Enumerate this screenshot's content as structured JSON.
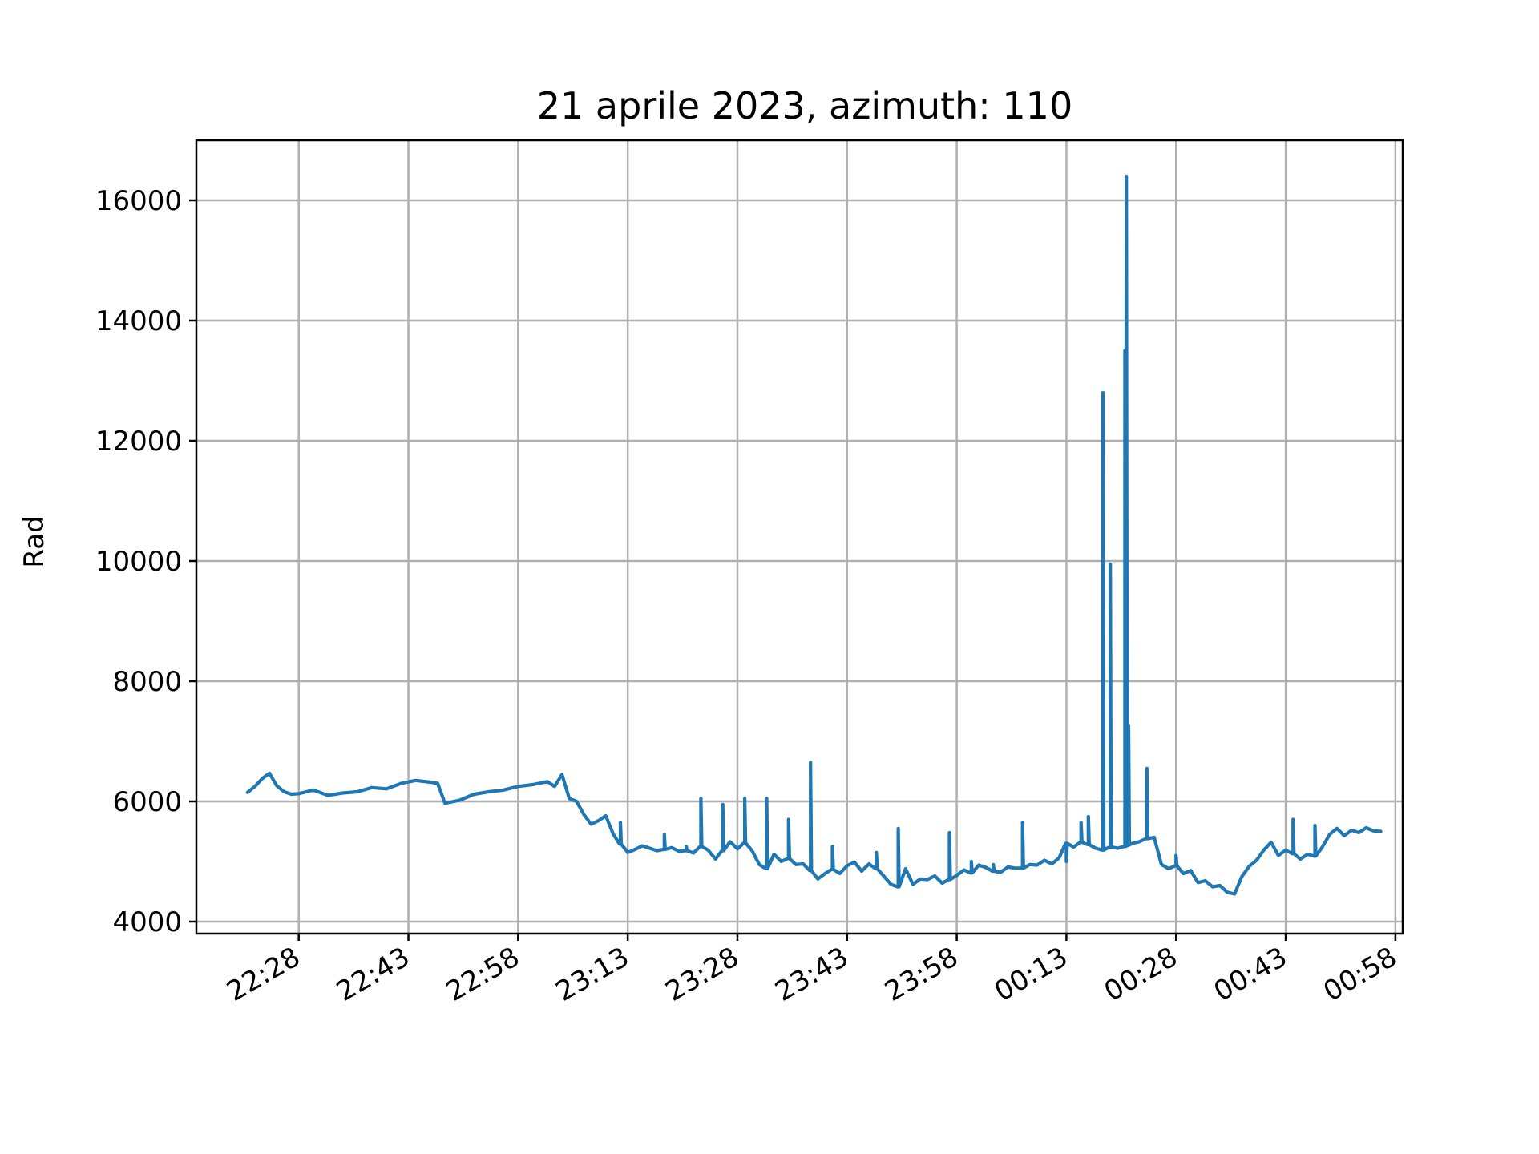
{
  "chart_data": {
    "type": "line",
    "title": "21 aprile 2023, azimuth: 110",
    "xlabel": "",
    "ylabel": "Rad",
    "x_unit": "time (HH:MM)",
    "xlim": [
      "22:14",
      "00:59"
    ],
    "ylim": [
      3800,
      17000
    ],
    "x_ticks": [
      "22:28",
      "22:43",
      "22:58",
      "23:13",
      "23:28",
      "23:43",
      "23:58",
      "00:13",
      "00:28",
      "00:43",
      "00:58"
    ],
    "y_ticks": [
      4000,
      6000,
      8000,
      10000,
      12000,
      14000,
      16000
    ],
    "grid": true,
    "line_color": "#1f77b4",
    "series": [
      {
        "x": [
          "22:21",
          "22:22",
          "22:23",
          "22:24",
          "22:25",
          "22:26",
          "22:27",
          "22:28",
          "22:30",
          "22:32",
          "22:34",
          "22:36",
          "22:38",
          "22:40",
          "22:42",
          "22:44",
          "22:46",
          "22:47",
          "22:48",
          "22:50",
          "22:52",
          "22:54",
          "22:56",
          "22:58",
          "23:00",
          "23:02",
          "23:03",
          "23:04",
          "23:05",
          "23:06",
          "23:07",
          "23:08",
          "23:09",
          "23:10",
          "23:11",
          "23:12",
          "23:13",
          "23:14",
          "23:15",
          "23:16",
          "23:17",
          "23:18",
          "23:19",
          "23:20",
          "23:21",
          "23:22",
          "23:23",
          "23:24",
          "23:25",
          "23:26",
          "23:27",
          "23:28",
          "23:29",
          "23:30",
          "23:31",
          "23:32",
          "23:33",
          "23:34",
          "23:35",
          "23:36",
          "23:37",
          "23:38",
          "23:39",
          "23:40",
          "23:41",
          "23:42",
          "23:43",
          "23:44",
          "23:45",
          "23:46",
          "23:47",
          "23:48",
          "23:49",
          "23:50",
          "23:51",
          "23:52",
          "23:53",
          "23:54",
          "23:55",
          "23:56",
          "23:57",
          "23:58",
          "23:59",
          "00:00",
          "00:01",
          "00:02",
          "00:03",
          "00:04",
          "00:05",
          "00:06",
          "00:07",
          "00:08",
          "00:09",
          "00:10",
          "00:11",
          "00:12",
          "00:13",
          "00:14",
          "00:15",
          "00:16",
          "00:17",
          "00:18",
          "00:19",
          "00:20",
          "00:21",
          "00:22",
          "00:23",
          "00:24",
          "00:25",
          "00:26",
          "00:27",
          "00:28",
          "00:29",
          "00:30",
          "00:31",
          "00:32",
          "00:33",
          "00:34",
          "00:35",
          "00:36",
          "00:37",
          "00:38",
          "00:39",
          "00:40",
          "00:41",
          "00:42",
          "00:43",
          "00:44",
          "00:45",
          "00:46",
          "00:47",
          "00:48",
          "00:49",
          "00:50",
          "00:51",
          "00:52",
          "00:53",
          "00:54",
          "00:55",
          "00:56"
        ],
        "y": [
          6150,
          6250,
          6380,
          6470,
          6260,
          6160,
          6120,
          6130,
          6190,
          6100,
          6140,
          6160,
          6230,
          6210,
          6300,
          6350,
          6320,
          6300,
          5970,
          6020,
          6120,
          6160,
          6190,
          6250,
          6280,
          6330,
          6250,
          6450,
          6050,
          6000,
          5780,
          5620,
          5680,
          5760,
          5460,
          5290,
          5150,
          5200,
          5260,
          5220,
          5180,
          5200,
          5230,
          5170,
          5180,
          5140,
          5250,
          5190,
          5040,
          5180,
          5330,
          5210,
          5310,
          5180,
          4950,
          4880,
          5120,
          5000,
          5050,
          4950,
          4960,
          4850,
          4710,
          4800,
          4870,
          4800,
          4930,
          4990,
          4840,
          4960,
          4880,
          4760,
          4620,
          4580,
          4880,
          4620,
          4710,
          4700,
          4760,
          4640,
          4700,
          4770,
          4860,
          4810,
          4940,
          4900,
          4840,
          4820,
          4910,
          4890,
          4890,
          4950,
          4940,
          5020,
          4960,
          5060,
          5300,
          5240,
          5320,
          5280,
          5220,
          5190,
          5240,
          5220,
          5250,
          5300,
          5330,
          5380,
          5400,
          4950,
          4880,
          4930,
          4800,
          4850,
          4650,
          4680,
          4580,
          4600,
          4490,
          4460,
          4750,
          4920,
          5020,
          5190,
          5320,
          5100,
          5190,
          5130,
          5040,
          5120,
          5090,
          5240,
          5450,
          5550,
          5430,
          5520,
          5480,
          5560,
          5510,
          5500
        ]
      }
    ],
    "spikes": [
      {
        "x": "23:12",
        "peak": 5650
      },
      {
        "x": "23:18",
        "peak": 5450
      },
      {
        "x": "23:21",
        "peak": 5250
      },
      {
        "x": "23:23",
        "peak": 6050
      },
      {
        "x": "23:26",
        "peak": 5950
      },
      {
        "x": "23:29",
        "peak": 6050
      },
      {
        "x": "23:32",
        "peak": 6050
      },
      {
        "x": "23:35",
        "peak": 5700
      },
      {
        "x": "23:38",
        "peak": 6650
      },
      {
        "x": "23:41",
        "peak": 5250
      },
      {
        "x": "23:47",
        "peak": 5150
      },
      {
        "x": "23:50",
        "peak": 5550
      },
      {
        "x": "23:57",
        "peak": 5480
      },
      {
        "x": "24:00",
        "peak": 5000
      },
      {
        "x": "24:03",
        "peak": 4950
      },
      {
        "x": "24:07",
        "peak": 5650
      },
      {
        "x": "24:13",
        "peak": 5000
      },
      {
        "x": "24:15",
        "peak": 5650
      },
      {
        "x": "24:16",
        "peak": 5750
      },
      {
        "x": "24:18",
        "peak": 12800
      },
      {
        "x": "24:19",
        "peak": 9950
      },
      {
        "x": "24:21",
        "peak": 13500
      },
      {
        "x": "24:21.2",
        "peak": 16400
      },
      {
        "x": "24:21.5",
        "peak": 7250
      },
      {
        "x": "24:24",
        "peak": 6550
      },
      {
        "x": "24:28",
        "peak": 5100
      },
      {
        "x": "24:44",
        "peak": 5700
      },
      {
        "x": "24:47",
        "peak": 5600
      }
    ]
  }
}
